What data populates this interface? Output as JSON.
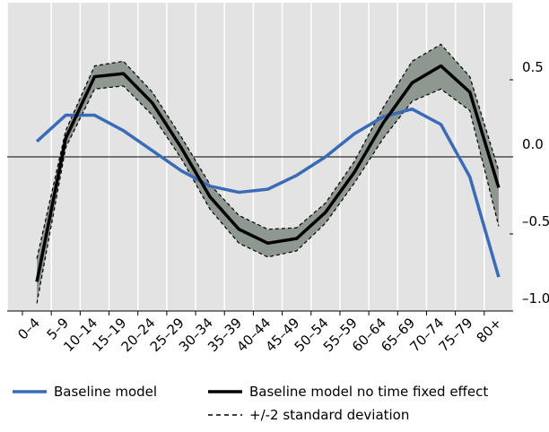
{
  "chart_data": {
    "type": "line",
    "categories": [
      "0–4",
      "5–9",
      "10–14",
      "15–19",
      "20–24",
      "25–29",
      "30–34",
      "35–39",
      "40–44",
      "45–49",
      "50–54",
      "55–59",
      "60–64",
      "65–69",
      "70–74",
      "75–79",
      "80+"
    ],
    "series": [
      {
        "name": "Baseline model",
        "color": "#3a6bb8",
        "values": [
          0.1,
          0.27,
          0.27,
          0.17,
          0.04,
          -0.09,
          -0.19,
          -0.23,
          -0.21,
          -0.12,
          0.0,
          0.15,
          0.26,
          0.31,
          0.21,
          -0.13,
          -0.78
        ]
      },
      {
        "name": "Baseline model no time fixed effect",
        "color": "#000000",
        "values": [
          -0.81,
          0.12,
          0.52,
          0.54,
          0.35,
          0.06,
          -0.26,
          -0.47,
          -0.56,
          -0.53,
          -0.36,
          -0.1,
          0.22,
          0.48,
          0.59,
          0.42,
          -0.2
        ]
      }
    ],
    "band": {
      "name": "+/-2 standard deviation",
      "color": "#8e9890",
      "upper": [
        -0.66,
        0.17,
        0.59,
        0.62,
        0.42,
        0.13,
        -0.18,
        -0.38,
        -0.47,
        -0.46,
        -0.3,
        -0.03,
        0.32,
        0.62,
        0.73,
        0.52,
        -0.09
      ],
      "lower": [
        -0.95,
        0.06,
        0.44,
        0.46,
        0.27,
        -0.01,
        -0.34,
        -0.56,
        -0.65,
        -0.61,
        -0.43,
        -0.17,
        0.12,
        0.36,
        0.44,
        0.3,
        -0.45
      ]
    },
    "ylim": [
      -1,
      1
    ],
    "yticks": [
      0.5,
      {
        "value": 0,
        "label": "0.0"
      },
      {
        "value": -0.5,
        "label": "–0.5"
      },
      {
        "value": -1,
        "label": "–1.0"
      }
    ],
    "axis_side": "right"
  }
}
